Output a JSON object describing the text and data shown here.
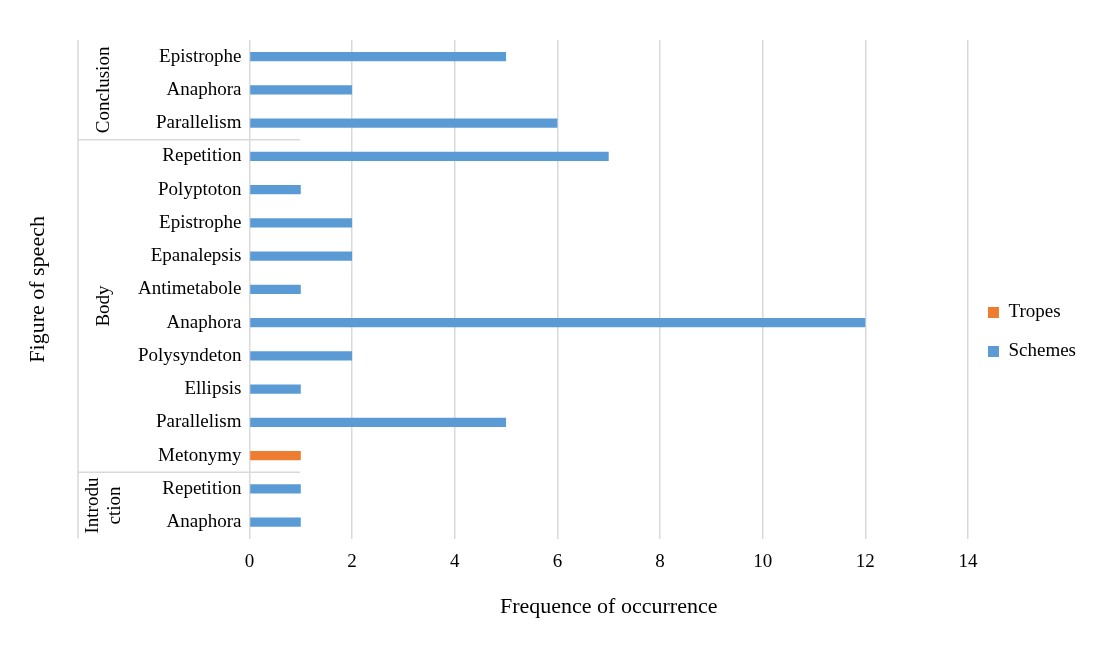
{
  "chart_data": {
    "type": "bar",
    "orientation": "horizontal",
    "xlabel": "Frequence of occurrence",
    "ylabel": "Figure of speech",
    "categories": [
      "Epistrophe",
      "Anaphora",
      "Parallelism",
      "Repetition",
      "Polyptoton",
      "Epistrophe",
      "Epanalepsis",
      "Antimetabole",
      "Anaphora",
      "Polysyndeton",
      "Ellipsis",
      "Parallelism",
      "Metonymy",
      "Repetition",
      "Anaphora"
    ],
    "series": [
      {
        "name": "Tropes",
        "color": "#ed7d31",
        "values": [
          null,
          null,
          null,
          null,
          null,
          null,
          null,
          null,
          null,
          null,
          null,
          null,
          1,
          null,
          null
        ]
      },
      {
        "name": "Schemes",
        "color": "#5b9bd5",
        "values": [
          5,
          2,
          6,
          7,
          1,
          2,
          2,
          1,
          12,
          2,
          1,
          5,
          null,
          1,
          1
        ]
      }
    ],
    "xlim": [
      0,
      14
    ],
    "xticks": [
      0,
      2,
      4,
      6,
      8,
      10,
      12,
      14
    ],
    "grid": "x",
    "legend": "right",
    "annotations": [
      "Conclusion",
      "Body",
      "Introduction"
    ]
  }
}
